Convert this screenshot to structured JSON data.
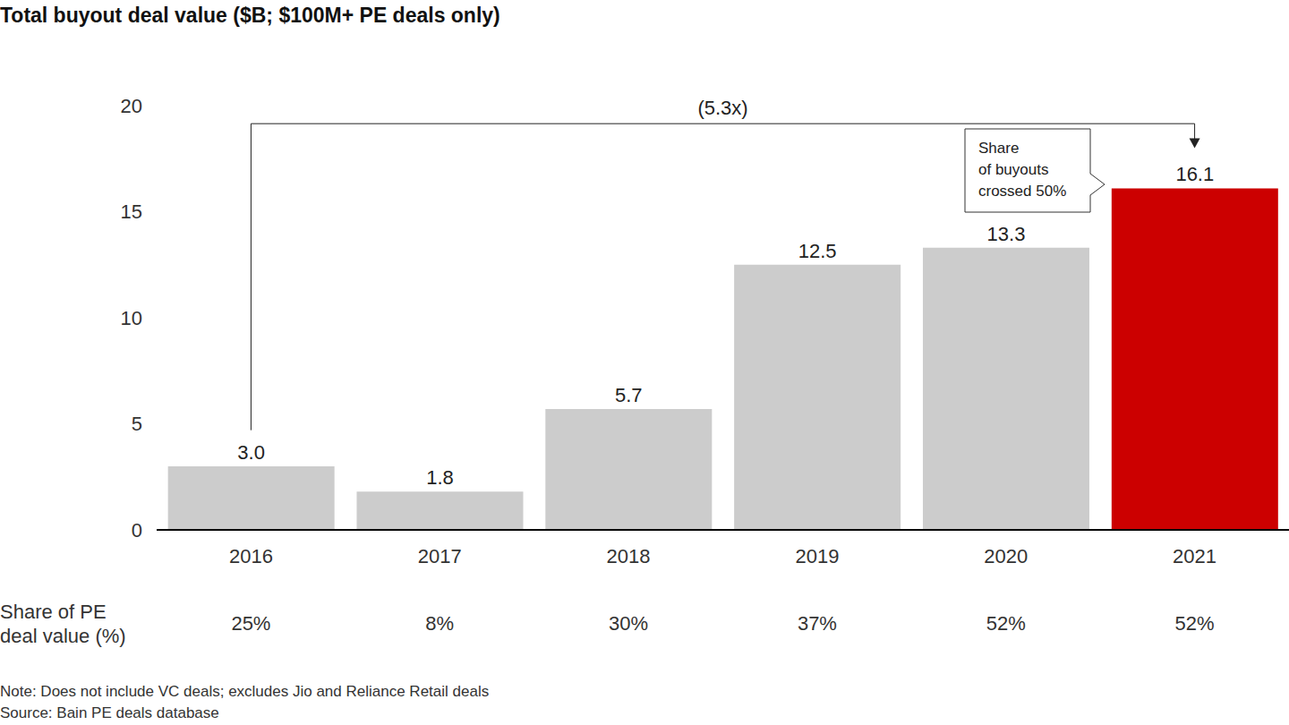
{
  "chart_data": {
    "type": "bar",
    "title": "Total buyout deal value ($B; $100M+ PE deals only)",
    "categories": [
      "2016",
      "2017",
      "2018",
      "2019",
      "2020",
      "2021"
    ],
    "values": [
      3.0,
      1.8,
      5.7,
      12.5,
      13.3,
      16.1
    ],
    "value_labels": [
      "3.0",
      "1.8",
      "5.7",
      "12.5",
      "13.3",
      "16.1"
    ],
    "colors": [
      "#cccccc",
      "#cccccc",
      "#cccccc",
      "#cccccc",
      "#cccccc",
      "#cc0000"
    ],
    "ylim": [
      0,
      20
    ],
    "yticks": [
      0,
      5,
      10,
      15,
      20
    ],
    "grid": false,
    "data_labels": true,
    "share_of_pe_deal_value": {
      "label": "Share of PE deal value (%)",
      "values": [
        25,
        8,
        30,
        37,
        52,
        52
      ],
      "value_labels": [
        "25%",
        "8%",
        "30%",
        "37%",
        "52%",
        "52%"
      ]
    },
    "annotations": {
      "growth": "(5.3x)",
      "callout": [
        "Share",
        "of buyouts",
        "crossed 50%"
      ]
    },
    "note": "Note: Does not include VC deals; excludes Jio and Reliance Retail deals",
    "source": "Source: Bain PE deals database"
  }
}
